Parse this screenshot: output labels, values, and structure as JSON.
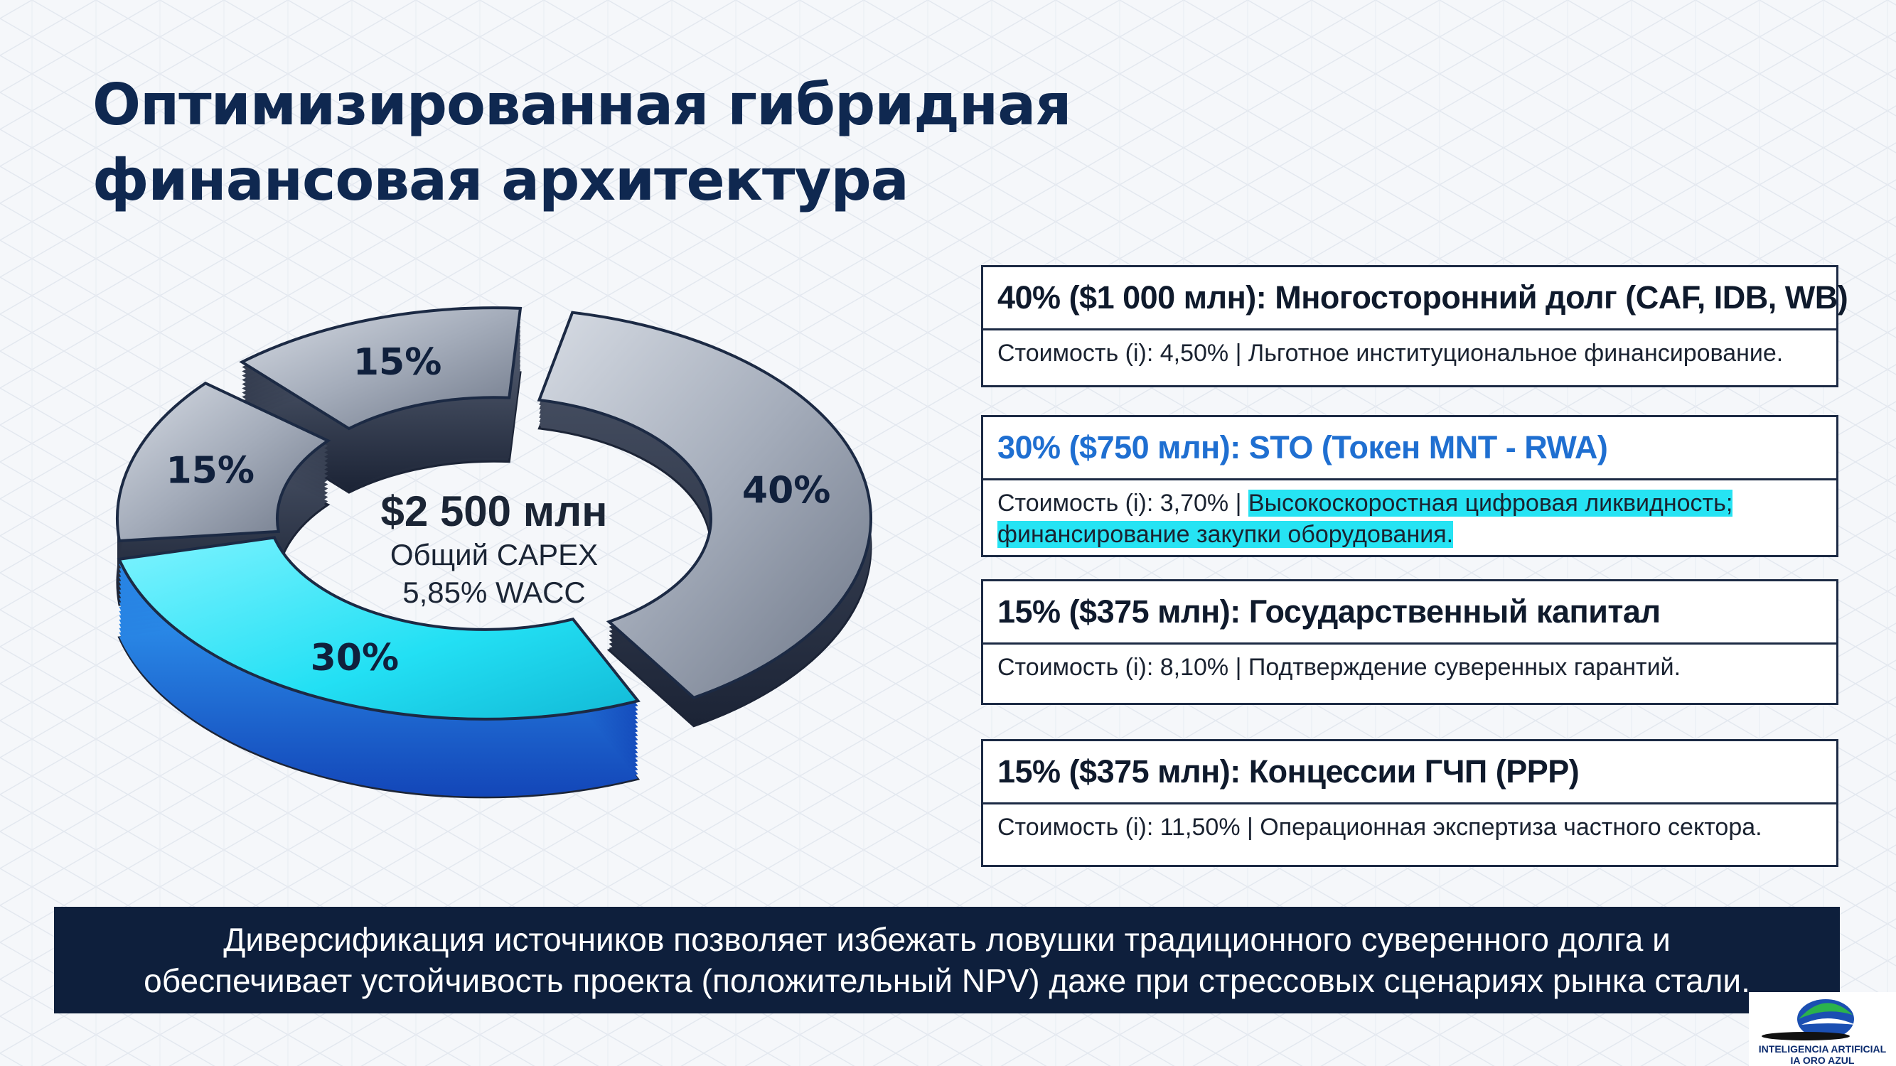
{
  "title": "Оптимизированная гибридная финансовая архитектура",
  "chart_data": {
    "type": "pie",
    "style": "3d-donut",
    "center": {
      "amount": "$2 500 млн",
      "line2": "Общий CAPEX",
      "line3": "5,85% WACC"
    },
    "slices": [
      {
        "label": "40%",
        "value": 40,
        "color": "#8f97a6"
      },
      {
        "label": "30%",
        "value": 30,
        "color": "#25e2f5"
      },
      {
        "label": "15%",
        "value": 15,
        "color": "#9aa2b0"
      },
      {
        "label": "15%",
        "value": 15,
        "color": "#9aa2b0"
      }
    ]
  },
  "cards": [
    {
      "heading": "40% ($1 000 млн): Многосторонний долг (CAF, IDB, WB)",
      "cost_prefix": "Стоимость (i): 4,50% | ",
      "cost_text": "Льготное институциональное финансирование.",
      "heading_color": "#0f1a2c",
      "highlight": false
    },
    {
      "heading": "30% ($750 млн): STO (Токен MNT - RWA)",
      "cost_prefix": "Стоимость (i): 3,70% | ",
      "cost_hl_line1": "Высокоскоростная цифровая ликвидность;",
      "cost_hl_line2": "финансирование закупки оборудования.",
      "heading_color": "#1f6fd1",
      "highlight": true
    },
    {
      "heading": "15% ($375 млн): Государственный капитал",
      "cost_prefix": "Стоимость (i): 8,10% | ",
      "cost_text": "Подтверждение суверенных гарантий.",
      "heading_color": "#0f1a2c",
      "highlight": false
    },
    {
      "heading": "15% ($375 млн): Концессии ГЧП (PPP)",
      "cost_prefix": "Стоимость (i): 11,50% | ",
      "cost_text": "Операционная экспертиза частного сектора.",
      "heading_color": "#0f1a2c",
      "highlight": false
    }
  ],
  "footer": {
    "line1": "Диверсификация источников позволяет избежать ловушки традиционного суверенного долга и",
    "line2": "обеспечивает устойчивость проекта (положительный NPV) даже при стрессовых сценариях рынка стали."
  },
  "logo": {
    "line1": "INTELIGENCIA ARTIFICIAL",
    "line2": "IA ORO AZUL"
  }
}
